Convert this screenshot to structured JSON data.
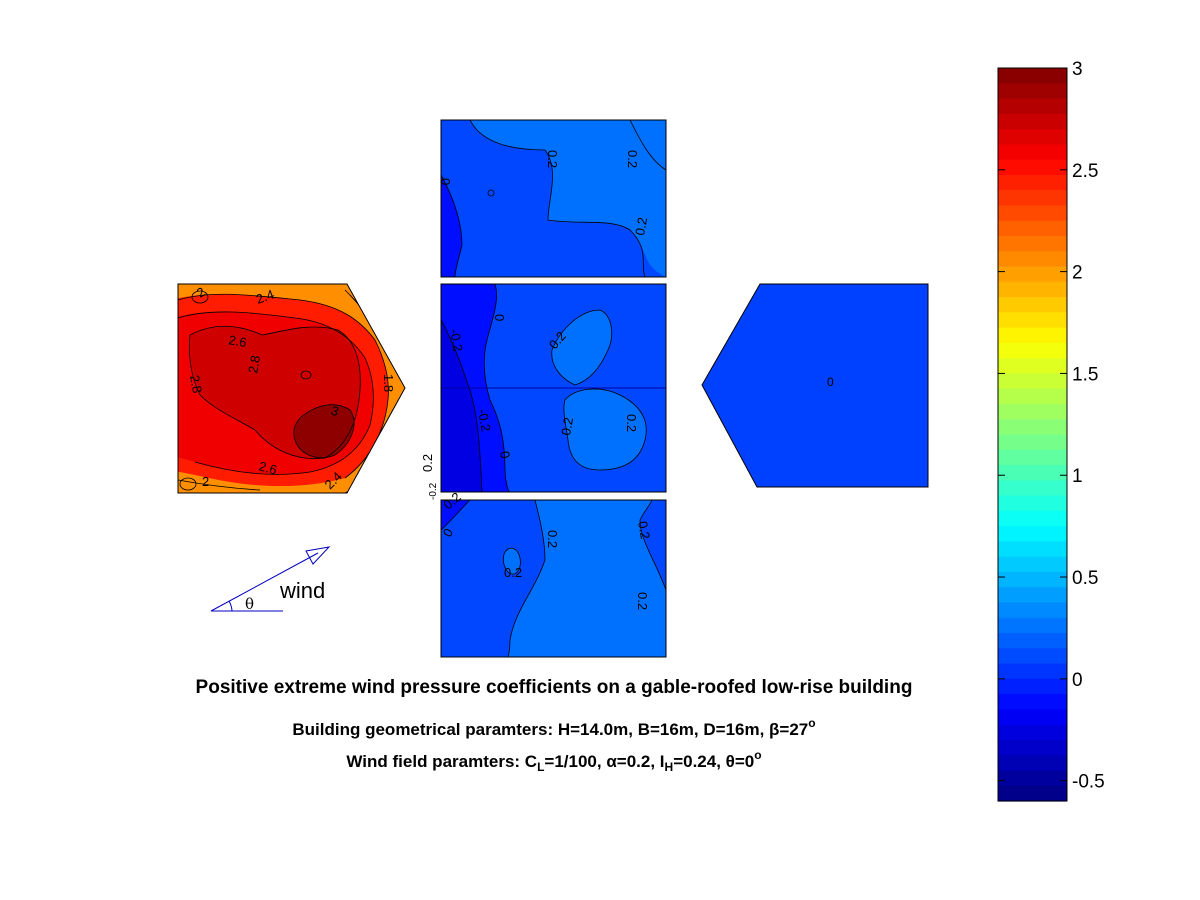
{
  "chart_data": {
    "type": "heatmap",
    "description_text": {
      "caption_main": "Positive extreme wind pressure coefficients on a gable-roofed low-rise building",
      "caption_geometry_prefix": "Building geometrical paramters: H=14.0m, B=16m, D=16m, β=27",
      "caption_geometry_sup": "o",
      "caption_wind_prefix": "Wind field paramters: C",
      "caption_wind_sub1": "L",
      "caption_wind_mid": "=1/100, α=0.2, I",
      "caption_wind_sub2": "H",
      "caption_wind_suffix": "=0.24, θ=0",
      "caption_wind_sup": "o"
    },
    "wind_label": "wind",
    "theta_label": "θ",
    "colorbar": {
      "range": [
        -0.6,
        3
      ],
      "ticks": [
        -0.5,
        0,
        0.5,
        1,
        1.5,
        2,
        2.5,
        3
      ],
      "tick_labels": [
        "-0.5",
        "0",
        "0.5",
        "1",
        "1.5",
        "2",
        "2.5",
        "3"
      ],
      "colormap": "jet"
    },
    "panels": {
      "left_gable_wall": {
        "fill_value": 2.5,
        "contour_labels": [
          "2.4",
          "2.6",
          "2.8",
          "2.8",
          "3",
          "2.6",
          "2.4",
          "2",
          "2",
          "1.8"
        ]
      },
      "roof_top": {
        "fill_value": 0.12,
        "contour_labels": [
          "0.2",
          "0.2",
          "0",
          "0.2"
        ]
      },
      "roof_middle": {
        "fill_value": 0.12,
        "contour_labels": [
          "0.2",
          "0",
          "-0.2",
          "-0.2",
          "0",
          "0.2",
          "0.2",
          "0.2"
        ]
      },
      "roof_bottom": {
        "fill_value": 0.12,
        "contour_labels": [
          "0.2",
          "0.2",
          "0.2",
          "0",
          "0.2",
          "-0.2",
          "0.2"
        ]
      },
      "right_gable_wall": {
        "fill_value": 0.0,
        "contour_labels": [
          "0"
        ]
      }
    }
  }
}
